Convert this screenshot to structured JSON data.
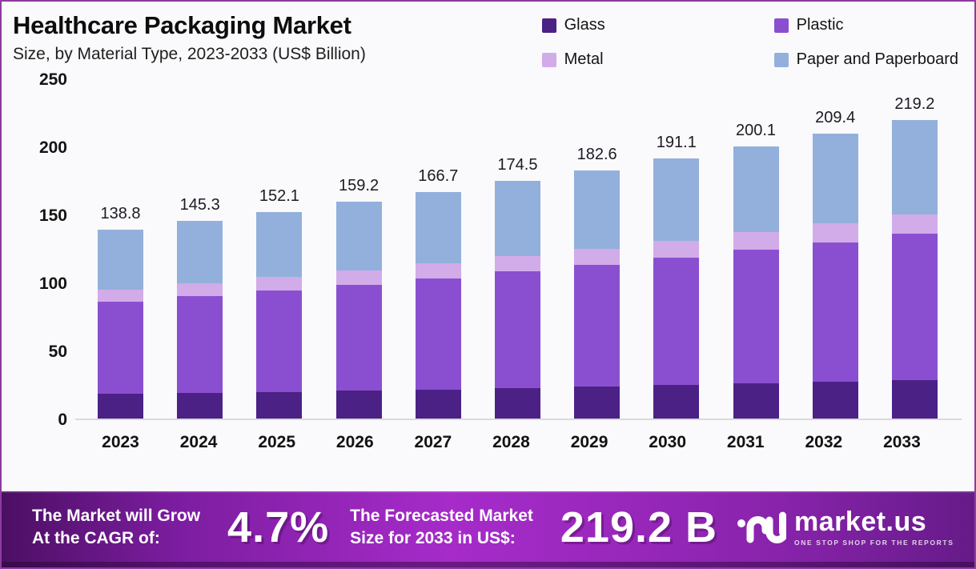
{
  "frame": {
    "border_color": "#8e3b9f",
    "background": "#faf9fb",
    "baseline_color": "#d9d9de"
  },
  "header": {
    "title": "Healthcare Packaging Market",
    "subtitle": "Size, by Material Type, 2023-2033 (US$ Billion)"
  },
  "chart_data": {
    "type": "bar",
    "stacked": true,
    "title": "Healthcare Packaging Market",
    "subtitle": "Size, by Material Type, 2023-2033 (US$ Billion)",
    "unit": "US$ Billion",
    "categories": [
      "2023",
      "2024",
      "2025",
      "2026",
      "2027",
      "2028",
      "2029",
      "2030",
      "2031",
      "2032",
      "2033"
    ],
    "series": [
      {
        "name": "Glass",
        "color": "#4b2186",
        "values": [
          18.0,
          18.8,
          19.6,
          20.5,
          21.5,
          22.5,
          23.5,
          24.6,
          25.8,
          27.0,
          28.3
        ]
      },
      {
        "name": "Plastic",
        "color": "#8a4fd0",
        "values": [
          68.0,
          71.2,
          74.5,
          78.0,
          81.7,
          85.5,
          89.5,
          93.7,
          98.1,
          102.7,
          107.5
        ]
      },
      {
        "name": "Metal",
        "color": "#d2abe9",
        "values": [
          9.0,
          9.4,
          9.8,
          10.3,
          10.8,
          11.3,
          11.8,
          12.4,
          13.0,
          13.6,
          14.2
        ]
      },
      {
        "name": "Paper and Paperboard",
        "color": "#92b0db",
        "values": [
          43.8,
          45.9,
          48.2,
          50.4,
          52.7,
          55.2,
          57.8,
          60.4,
          63.2,
          66.1,
          69.2
        ]
      }
    ],
    "stack_order_bottom_to_top": [
      "Glass",
      "Plastic",
      "Metal",
      "Paper and Paperboard"
    ],
    "totals": [
      138.8,
      145.3,
      152.1,
      159.2,
      166.7,
      174.5,
      182.6,
      191.1,
      200.1,
      209.4,
      219.2
    ],
    "ylim": [
      0,
      250
    ],
    "yticks": [
      0,
      50,
      100,
      150,
      200,
      250
    ],
    "grid": false,
    "legend_position": "top-right"
  },
  "footer": {
    "cagr_label_line1": "The Market will Grow",
    "cagr_label_line2": "At the CAGR of:",
    "cagr_value": "4.7%",
    "forecast_label_line1": "The Forecasted Market",
    "forecast_label_line2": "Size for 2033 in US$:",
    "forecast_value": "219.2 B",
    "brand_name": "market.us",
    "brand_tagline": "ONE STOP SHOP FOR THE REPORTS"
  }
}
